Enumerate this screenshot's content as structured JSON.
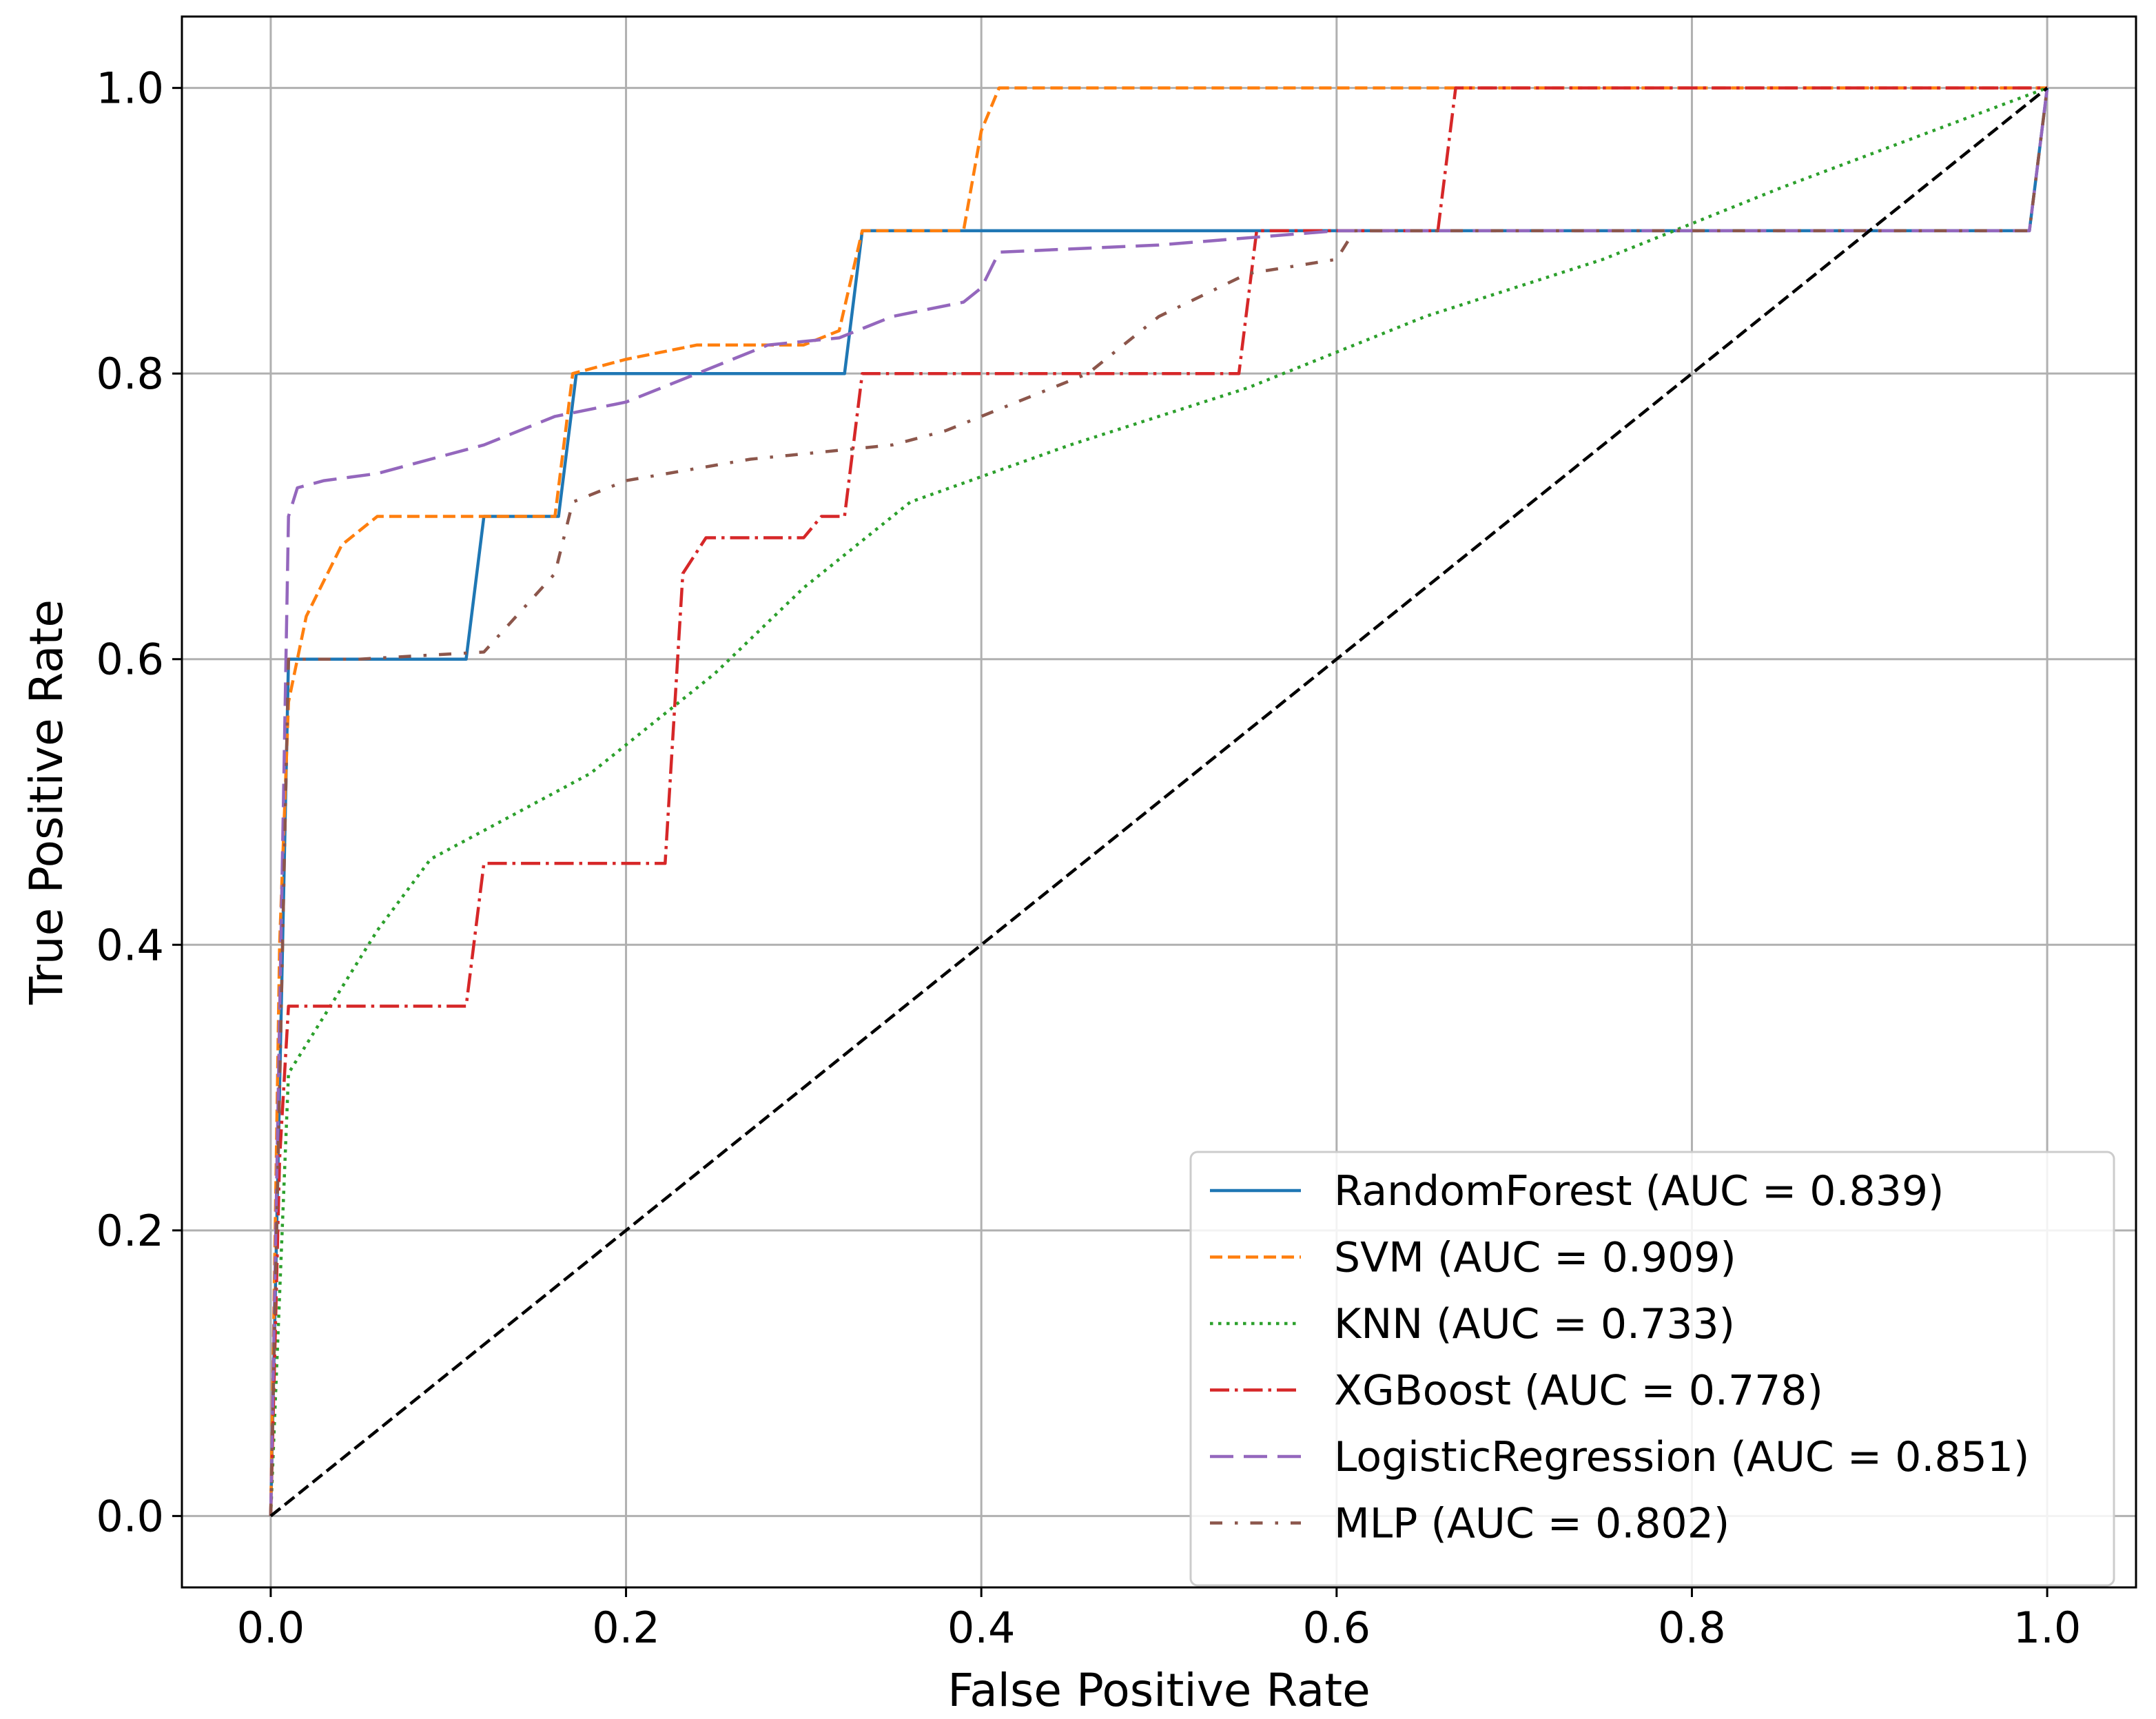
{
  "chart_data": {
    "type": "line",
    "title": "",
    "xlabel": "False Positive Rate",
    "ylabel": "True Positive Rate",
    "xlim": [
      -0.05,
      1.05
    ],
    "ylim": [
      -0.05,
      1.05
    ],
    "xticks": [
      0.0,
      0.2,
      0.4,
      0.6,
      0.8,
      1.0
    ],
    "yticks": [
      0.0,
      0.2,
      0.4,
      0.6,
      0.8,
      1.0
    ],
    "xtick_labels": [
      "0.0",
      "0.2",
      "0.4",
      "0.6",
      "0.8",
      "1.0"
    ],
    "ytick_labels": [
      "0.0",
      "0.2",
      "0.4",
      "0.6",
      "0.8",
      "1.0"
    ],
    "grid": true,
    "legend_position": "lower-right",
    "series": [
      {
        "name": "RandomForest (AUC = 0.839)",
        "color": "#1f77b4",
        "dash": "solid",
        "x": [
          0.0,
          0.0,
          0.01,
          0.11,
          0.12,
          0.162,
          0.172,
          0.323,
          0.333,
          0.99,
          1.0
        ],
        "y": [
          0.0,
          0.0,
          0.6,
          0.6,
          0.7,
          0.7,
          0.8,
          0.8,
          0.9,
          0.9,
          1.0
        ]
      },
      {
        "name": "SVM (AUC = 0.909)",
        "color": "#ff7f0e",
        "dash": "dashed",
        "x": [
          0.0,
          0.005,
          0.01,
          0.02,
          0.04,
          0.06,
          0.08,
          0.16,
          0.17,
          0.2,
          0.24,
          0.3,
          0.32,
          0.333,
          0.39,
          0.4,
          0.41,
          1.0
        ],
        "y": [
          0.0,
          0.4,
          0.57,
          0.63,
          0.68,
          0.7,
          0.7,
          0.7,
          0.8,
          0.81,
          0.82,
          0.82,
          0.83,
          0.9,
          0.9,
          0.97,
          1.0,
          1.0
        ]
      },
      {
        "name": "KNN (AUC = 0.733)",
        "color": "#2ca02c",
        "dash": "dotted",
        "x": [
          0.0,
          0.01,
          0.03,
          0.06,
          0.09,
          0.12,
          0.18,
          0.25,
          0.3,
          0.36,
          0.45,
          0.55,
          0.65,
          0.75,
          0.85,
          1.0
        ],
        "y": [
          0.0,
          0.31,
          0.35,
          0.41,
          0.46,
          0.48,
          0.52,
          0.59,
          0.65,
          0.71,
          0.75,
          0.79,
          0.84,
          0.88,
          0.93,
          1.0
        ]
      },
      {
        "name": "XGBoost (AUC = 0.778)",
        "color": "#d62728",
        "dash": "dashdot",
        "x": [
          0.0,
          0.005,
          0.01,
          0.11,
          0.12,
          0.222,
          0.232,
          0.245,
          0.3,
          0.31,
          0.323,
          0.333,
          0.545,
          0.555,
          0.657,
          0.667,
          1.0
        ],
        "y": [
          0.0,
          0.25,
          0.357,
          0.357,
          0.457,
          0.457,
          0.66,
          0.685,
          0.685,
          0.7,
          0.7,
          0.8,
          0.8,
          0.9,
          0.9,
          1.0,
          1.0
        ]
      },
      {
        "name": "LogisticRegression (AUC = 0.851)",
        "color": "#9467bd",
        "dash": "longdash",
        "x": [
          0.0,
          0.005,
          0.01,
          0.015,
          0.03,
          0.06,
          0.09,
          0.12,
          0.16,
          0.2,
          0.24,
          0.28,
          0.32,
          0.35,
          0.39,
          0.4,
          0.41,
          0.5,
          0.6,
          0.99,
          1.0
        ],
        "y": [
          0.0,
          0.35,
          0.7,
          0.72,
          0.725,
          0.73,
          0.74,
          0.75,
          0.77,
          0.78,
          0.8,
          0.82,
          0.825,
          0.84,
          0.85,
          0.86,
          0.885,
          0.89,
          0.9,
          0.9,
          1.0
        ]
      },
      {
        "name": "MLP (AUC = 0.802)",
        "color": "#8c564b",
        "dash": "dashdot-sparse",
        "x": [
          0.0,
          0.005,
          0.01,
          0.05,
          0.12,
          0.16,
          0.17,
          0.2,
          0.27,
          0.35,
          0.38,
          0.42,
          0.46,
          0.5,
          0.55,
          0.6,
          0.61,
          0.99,
          1.0
        ],
        "y": [
          0.0,
          0.3,
          0.6,
          0.6,
          0.605,
          0.66,
          0.71,
          0.725,
          0.74,
          0.75,
          0.76,
          0.78,
          0.8,
          0.84,
          0.87,
          0.88,
          0.9,
          0.9,
          1.0
        ]
      },
      {
        "name": "",
        "color": "#000000",
        "dash": "dashed",
        "x": [
          0.0,
          1.0
        ],
        "y": [
          0.0,
          1.0
        ]
      }
    ]
  }
}
